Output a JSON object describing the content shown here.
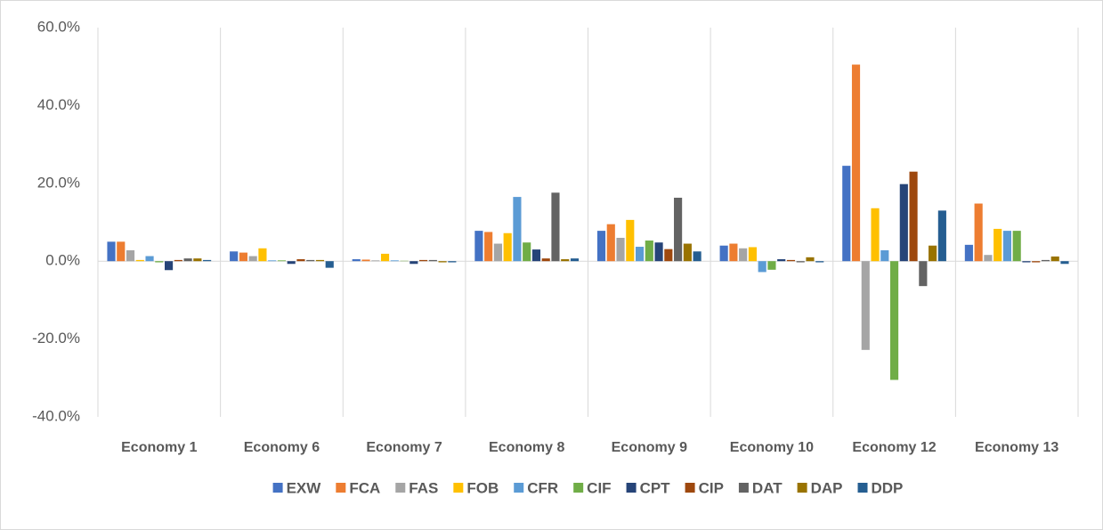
{
  "chart_data": {
    "type": "bar",
    "categories": [
      "Economy 1",
      "Economy 6",
      "Economy 7",
      "Economy 8",
      "Economy 9",
      "Economy 10",
      "Economy 12",
      "Economy 13"
    ],
    "series": [
      {
        "name": "EXW",
        "color": "#4472c4",
        "values": [
          5.0,
          2.5,
          0.5,
          7.8,
          7.8,
          4.0,
          24.5,
          4.2
        ]
      },
      {
        "name": "FCA",
        "color": "#ed7d31",
        "values": [
          5.0,
          2.2,
          0.4,
          7.5,
          9.5,
          4.5,
          50.5,
          14.8
        ]
      },
      {
        "name": "FAS",
        "color": "#a5a5a5",
        "values": [
          2.8,
          1.3,
          0.2,
          4.5,
          6.0,
          3.3,
          -22.8,
          1.6
        ]
      },
      {
        "name": "FOB",
        "color": "#ffc000",
        "values": [
          0.3,
          3.3,
          1.9,
          7.2,
          10.6,
          3.6,
          13.6,
          8.3
        ]
      },
      {
        "name": "CFR",
        "color": "#5b9bd5",
        "values": [
          1.3,
          0.2,
          0.2,
          16.5,
          3.7,
          -2.8,
          2.8,
          7.8
        ]
      },
      {
        "name": "CIF",
        "color": "#70ad47",
        "values": [
          -0.3,
          0.2,
          0.1,
          4.8,
          5.3,
          -2.2,
          -30.5,
          7.8
        ]
      },
      {
        "name": "CPT",
        "color": "#264478",
        "values": [
          -2.3,
          -0.7,
          -0.7,
          3.0,
          4.8,
          0.5,
          19.8,
          -0.3
        ]
      },
      {
        "name": "CIP",
        "color": "#9e480e",
        "values": [
          0.3,
          0.5,
          0.3,
          0.7,
          3.1,
          0.3,
          23.0,
          -0.3
        ]
      },
      {
        "name": "DAT",
        "color": "#636363",
        "values": [
          0.7,
          0.3,
          0.3,
          17.6,
          16.3,
          -0.3,
          -6.4,
          0.3
        ]
      },
      {
        "name": "DAP",
        "color": "#997300",
        "values": [
          0.7,
          0.3,
          -0.3,
          0.5,
          4.5,
          1.0,
          4.0,
          1.2
        ]
      },
      {
        "name": "DDP",
        "color": "#255e91",
        "values": [
          0.3,
          -1.7,
          -0.3,
          0.7,
          2.5,
          -0.3,
          13.0,
          -0.7
        ]
      }
    ],
    "ylim": [
      -40,
      60
    ],
    "yticks": [
      {
        "value": -40,
        "label": "-40.0%"
      },
      {
        "value": -20,
        "label": "-20.0%"
      },
      {
        "value": 0,
        "label": "0.0%"
      },
      {
        "value": 20,
        "label": "20.0%"
      },
      {
        "value": 40,
        "label": "40.0%"
      },
      {
        "value": 60,
        "label": "60.0%"
      }
    ],
    "grid": false,
    "legend": "bottom"
  }
}
